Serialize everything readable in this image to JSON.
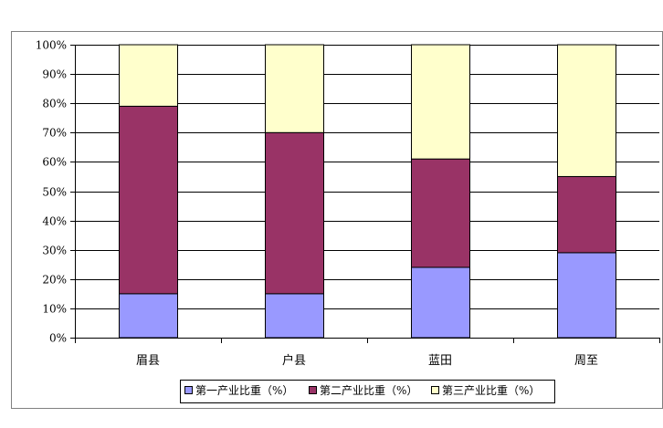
{
  "chart_data": {
    "type": "bar",
    "stacked": true,
    "categories": [
      "眉县",
      "户县",
      "蓝田",
      "周至"
    ],
    "series": [
      {
        "name": "第一产业比重（%）",
        "color": "#9999ff",
        "values": [
          15,
          15,
          24,
          29
        ]
      },
      {
        "name": "第二产业比重（%）",
        "color": "#993366",
        "values": [
          64,
          55,
          37,
          26
        ]
      },
      {
        "name": "第三产业比重（%）",
        "color": "#ffffcc",
        "values": [
          21,
          30,
          39,
          45
        ]
      }
    ],
    "y_ticks": [
      "0%",
      "10%",
      "20%",
      "30%",
      "40%",
      "50%",
      "60%",
      "70%",
      "80%",
      "90%",
      "100%"
    ],
    "ylim": [
      0,
      100
    ],
    "grid": true,
    "legend_position": "bottom",
    "title": "",
    "xlabel": "",
    "ylabel": ""
  }
}
